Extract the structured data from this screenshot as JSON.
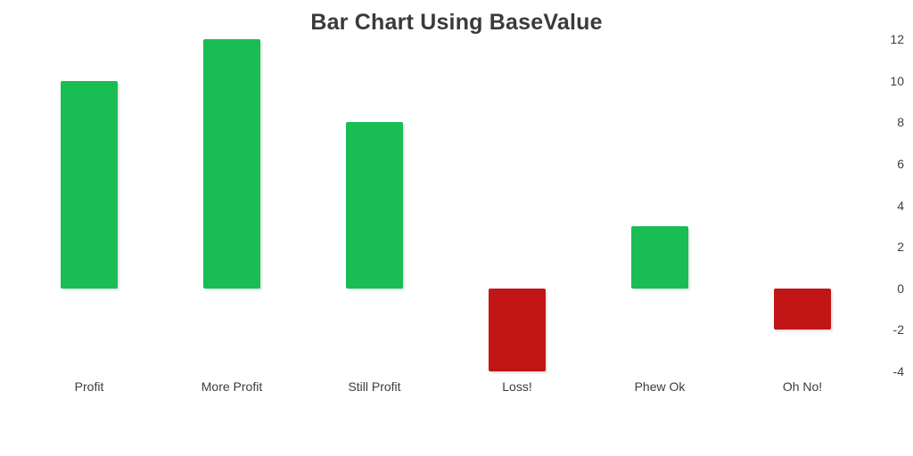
{
  "title": "Bar Chart Using BaseValue",
  "chart_data": {
    "type": "bar",
    "title": "Bar Chart Using BaseValue",
    "categories": [
      "Profit",
      "More Profit",
      "Still Profit",
      "Loss!",
      "Phew Ok",
      "Oh No!"
    ],
    "values": [
      10,
      12,
      8,
      -4,
      3,
      -2
    ],
    "base_value": 0,
    "ylim": [
      -4,
      12
    ],
    "yticks": [
      12,
      10,
      8,
      6,
      4,
      2,
      0,
      -2,
      -4
    ],
    "yaxis_side": "right",
    "grid": false,
    "legend": "none",
    "positive_color": "#1abc54",
    "negative_color": "#c21515",
    "title_color": "#3a3a3a",
    "label_color": "#3c3c3c"
  }
}
